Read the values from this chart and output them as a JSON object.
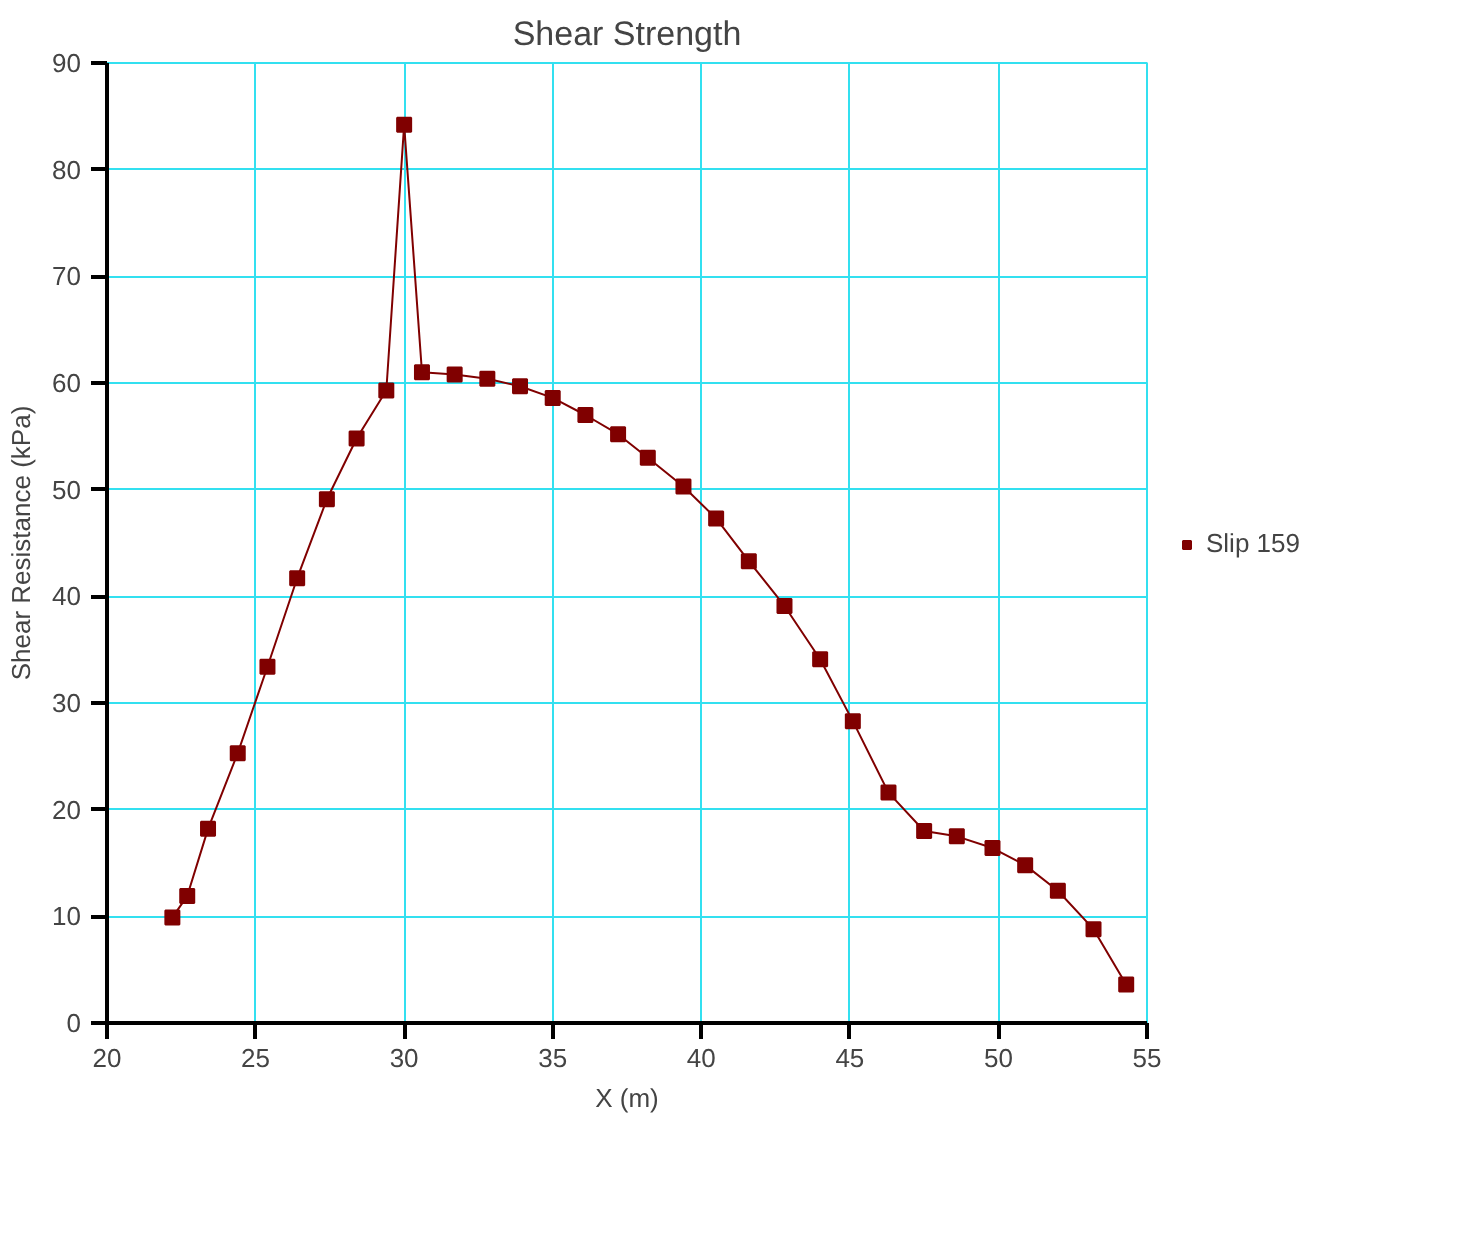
{
  "chart_data": {
    "type": "line",
    "title": "Shear Strength",
    "xlabel": "X (m)",
    "ylabel": "Shear Resistance (kPa)",
    "xlim": [
      20,
      55
    ],
    "xticks": [
      20,
      25,
      30,
      35,
      40,
      45,
      50,
      55
    ],
    "ylim": [
      0,
      90
    ],
    "yticks": [
      0,
      10,
      20,
      30,
      40,
      50,
      60,
      70,
      80,
      90
    ],
    "grid": true,
    "legend": "right",
    "marker": "square",
    "line_style": "solid",
    "series": [
      {
        "name": "Slip 159",
        "color": "#800000",
        "x": [
          22.2,
          22.7,
          23.4,
          24.4,
          25.4,
          26.4,
          27.4,
          28.4,
          29.4,
          30.0,
          30.6,
          31.7,
          32.8,
          33.9,
          35.0,
          36.1,
          37.2,
          38.2,
          39.4,
          40.5,
          41.6,
          42.8,
          44.0,
          45.1,
          46.3,
          47.5,
          48.6,
          49.8,
          50.9,
          52.0,
          53.2,
          54.3
        ],
        "values": [
          9.9,
          11.9,
          18.2,
          25.3,
          33.4,
          41.7,
          49.1,
          54.8,
          59.3,
          84.2,
          61.0,
          60.8,
          60.4,
          59.7,
          58.6,
          57.0,
          55.2,
          53.0,
          50.3,
          47.3,
          43.3,
          39.1,
          34.1,
          28.3,
          21.6,
          18.0,
          17.5,
          16.4,
          14.8,
          12.4,
          8.8,
          3.6
        ]
      }
    ]
  }
}
